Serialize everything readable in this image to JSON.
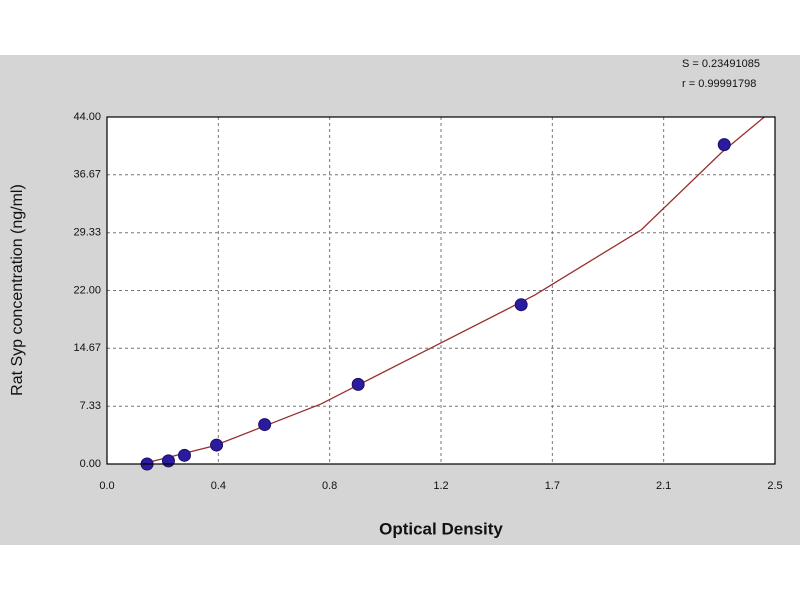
{
  "chart_data": {
    "type": "scatter",
    "xlabel": "Optical Density",
    "ylabel": "Rat Syp concentration (ng/ml)",
    "annotations": [
      "S = 0.23491085",
      "r = 0.99991798"
    ],
    "x": [
      0.15,
      0.23,
      0.29,
      0.41,
      0.59,
      0.94,
      1.55,
      2.31
    ],
    "values": [
      0,
      0.4,
      1.1,
      2.4,
      5.0,
      10.1,
      20.2,
      40.5
    ],
    "color": "#2b1b9e",
    "fit": {
      "x": [
        0.13,
        0.4,
        0.8,
        1.2,
        1.6,
        2.0,
        2.3,
        2.46
      ],
      "values": [
        0,
        2.3,
        7.6,
        14.5,
        21.4,
        29.7,
        39.5,
        44
      ],
      "color": "#9b2d2d"
    },
    "xlim": [
      0,
      2.5
    ],
    "ylim": [
      0,
      44
    ],
    "xticks": [
      {
        "value": 0,
        "label": "0.0"
      },
      {
        "value": 0.4167,
        "label": "0.4"
      },
      {
        "value": 0.8333,
        "label": "0.8"
      },
      {
        "value": 1.25,
        "label": "1.2"
      },
      {
        "value": 1.6667,
        "label": "1.7"
      },
      {
        "value": 2.0833,
        "label": "2.1"
      },
      2.5
    ],
    "yticks": [
      {
        "value": 0,
        "label": "0.00"
      },
      7.33,
      14.67,
      {
        "value": 22,
        "label": "22.00"
      },
      29.33,
      36.67,
      {
        "value": 44,
        "label": "44.00"
      }
    ],
    "grid": true
  }
}
